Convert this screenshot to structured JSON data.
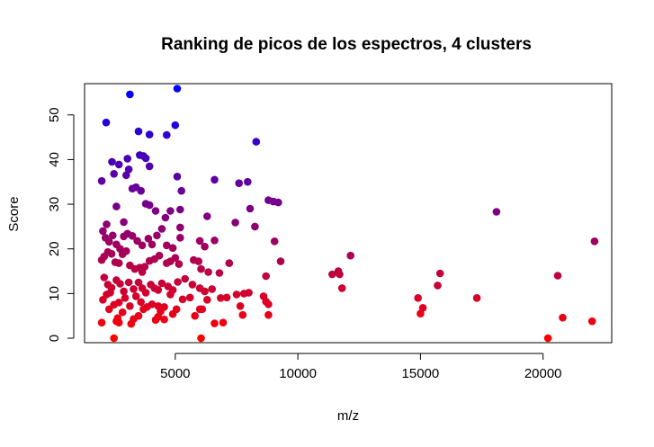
{
  "chart_data": {
    "type": "scatter",
    "title": "Ranking de picos de los espectros, 4 clusters",
    "xlabel": "m/z",
    "ylabel": "Score",
    "xlim": [
      1300,
      22800
    ],
    "ylim": [
      -1,
      57
    ],
    "x_ticks": [
      5000,
      10000,
      15000,
      20000
    ],
    "y_ticks": [
      0,
      10,
      20,
      30,
      40,
      50
    ],
    "x_tick_labels": [
      "5000",
      "10000",
      "15000",
      "20000"
    ],
    "y_tick_labels": [
      "0",
      "10",
      "20",
      "30",
      "40",
      "50"
    ],
    "grid": false,
    "legend": "none",
    "color_scale": {
      "low": "#ff0000",
      "high": "#0000ff",
      "encoding": "point color follows Score, red (low) to blue (high)"
    },
    "points": [
      [
        2000,
        35.2
      ],
      [
        2180,
        48.3
      ],
      [
        2420,
        39.5
      ],
      [
        2500,
        36.8
      ],
      [
        2700,
        38.9
      ],
      [
        3050,
        40.2
      ],
      [
        3150,
        54.6
      ],
      [
        3500,
        46.3
      ],
      [
        3550,
        41.0
      ],
      [
        3700,
        40.8
      ],
      [
        3800,
        40.3
      ],
      [
        3950,
        38.5
      ],
      [
        3950,
        45.6
      ],
      [
        4650,
        45.5
      ],
      [
        5000,
        47.7
      ],
      [
        5080,
        55.9
      ],
      [
        5080,
        36.2
      ],
      [
        5250,
        33.0
      ],
      [
        6600,
        35.5
      ],
      [
        7600,
        34.7
      ],
      [
        7950,
        35.0
      ],
      [
        8300,
        44.0
      ],
      [
        2200,
        25.5
      ],
      [
        2600,
        29.5
      ],
      [
        2900,
        26.0
      ],
      [
        3000,
        36.5
      ],
      [
        3100,
        37.8
      ],
      [
        3250,
        33.5
      ],
      [
        3400,
        33.8
      ],
      [
        3600,
        33.0
      ],
      [
        3800,
        30.1
      ],
      [
        3950,
        29.8
      ],
      [
        4200,
        28.5
      ],
      [
        4600,
        27.0
      ],
      [
        4800,
        28.5
      ],
      [
        5200,
        28.8
      ],
      [
        6300,
        27.3
      ],
      [
        7450,
        25.9
      ],
      [
        8050,
        29.0
      ],
      [
        8800,
        30.9
      ],
      [
        9000,
        30.6
      ],
      [
        9200,
        30.4
      ],
      [
        8250,
        25.0
      ],
      [
        18100,
        28.3
      ],
      [
        2050,
        24.0
      ],
      [
        2150,
        22.5
      ],
      [
        2300,
        21.6
      ],
      [
        2450,
        23.0
      ],
      [
        2600,
        21.0
      ],
      [
        2750,
        20.0
      ],
      [
        2900,
        22.8
      ],
      [
        3050,
        23.4
      ],
      [
        3250,
        22.9
      ],
      [
        3450,
        21.8
      ],
      [
        3650,
        20.8
      ],
      [
        3900,
        22.3
      ],
      [
        4050,
        21.0
      ],
      [
        4250,
        23.0
      ],
      [
        4450,
        24.5
      ],
      [
        4650,
        20.8
      ],
      [
        4900,
        20.2
      ],
      [
        5200,
        22.5
      ],
      [
        5200,
        24.8
      ],
      [
        6000,
        21.8
      ],
      [
        6200,
        20.5
      ],
      [
        6600,
        21.9
      ],
      [
        9050,
        21.7
      ],
      [
        22100,
        21.7
      ],
      [
        2000,
        17.5
      ],
      [
        2100,
        18.3
      ],
      [
        2250,
        19.3
      ],
      [
        2400,
        18.9
      ],
      [
        2550,
        17.0
      ],
      [
        2700,
        16.8
      ],
      [
        2850,
        18.8
      ],
      [
        3000,
        19.5
      ],
      [
        3150,
        16.3
      ],
      [
        3350,
        15.5
      ],
      [
        3550,
        15.8
      ],
      [
        3650,
        14.8
      ],
      [
        3750,
        16.0
      ],
      [
        3950,
        17.3
      ],
      [
        4150,
        17.7
      ],
      [
        4350,
        18.5
      ],
      [
        4650,
        16.8
      ],
      [
        4800,
        17.2
      ],
      [
        5000,
        18.0
      ],
      [
        5150,
        16.6
      ],
      [
        5750,
        17.5
      ],
      [
        5950,
        17.2
      ],
      [
        6050,
        15.5
      ],
      [
        6350,
        14.8
      ],
      [
        6800,
        14.6
      ],
      [
        7200,
        16.8
      ],
      [
        8700,
        13.9
      ],
      [
        9300,
        17.2
      ],
      [
        11400,
        14.3
      ],
      [
        11700,
        14.3
      ],
      [
        11650,
        15.0
      ],
      [
        12150,
        18.5
      ],
      [
        15800,
        14.5
      ],
      [
        20600,
        14.0
      ],
      [
        2100,
        13.6
      ],
      [
        2250,
        12.0
      ],
      [
        2400,
        11.3
      ],
      [
        2600,
        13.0
      ],
      [
        2750,
        12.2
      ],
      [
        2900,
        10.5
      ],
      [
        3100,
        12.5
      ],
      [
        3300,
        11.0
      ],
      [
        3500,
        12.5
      ],
      [
        3650,
        11.2
      ],
      [
        3800,
        10.2
      ],
      [
        4000,
        12.0
      ],
      [
        4150,
        11.2
      ],
      [
        4300,
        10.8
      ],
      [
        4450,
        12.3
      ],
      [
        4700,
        11.6
      ],
      [
        4900,
        10.8
      ],
      [
        5100,
        12.6
      ],
      [
        5400,
        13.3
      ],
      [
        5700,
        12.0
      ],
      [
        6000,
        11.2
      ],
      [
        6200,
        10.5
      ],
      [
        6500,
        11.0
      ],
      [
        7500,
        9.8
      ],
      [
        7800,
        10.0
      ],
      [
        8000,
        10.2
      ],
      [
        8600,
        9.4
      ],
      [
        8700,
        8.2
      ],
      [
        11800,
        11.2
      ],
      [
        15700,
        11.8
      ],
      [
        2050,
        8.6
      ],
      [
        2200,
        9.8
      ],
      [
        2350,
        10.2
      ],
      [
        2500,
        7.5
      ],
      [
        2700,
        8.0
      ],
      [
        2950,
        9.0
      ],
      [
        3150,
        7.2
      ],
      [
        3400,
        9.4
      ],
      [
        3600,
        8.1
      ],
      [
        3850,
        7.0
      ],
      [
        4050,
        7.6
      ],
      [
        4300,
        7.2
      ],
      [
        4400,
        6.0
      ],
      [
        4550,
        7.0
      ],
      [
        4800,
        9.8
      ],
      [
        5050,
        6.5
      ],
      [
        5300,
        8.7
      ],
      [
        5600,
        9.1
      ],
      [
        6000,
        6.5
      ],
      [
        6300,
        8.6
      ],
      [
        6850,
        9.0
      ],
      [
        7100,
        9.1
      ],
      [
        7650,
        7.2
      ],
      [
        8800,
        7.6
      ],
      [
        14900,
        9.0
      ],
      [
        17300,
        9.0
      ],
      [
        2000,
        3.5
      ],
      [
        2300,
        6.5
      ],
      [
        2650,
        4.5
      ],
      [
        2850,
        5.8
      ],
      [
        3200,
        3.2
      ],
      [
        3500,
        5.0
      ],
      [
        3700,
        6.5
      ],
      [
        4200,
        4.1
      ],
      [
        4550,
        4.2
      ],
      [
        4900,
        5.4
      ],
      [
        5800,
        5.0
      ],
      [
        6100,
        6.5
      ],
      [
        6950,
        3.5
      ],
      [
        7750,
        5.2
      ],
      [
        8800,
        5.2
      ],
      [
        15000,
        5.5
      ],
      [
        15100,
        6.8
      ],
      [
        20800,
        4.6
      ],
      [
        22000,
        3.8
      ],
      [
        2500,
        0.0
      ],
      [
        2600,
        3.8
      ],
      [
        2700,
        3.5
      ],
      [
        3300,
        4.3
      ],
      [
        4300,
        4.8
      ],
      [
        6050,
        0.0
      ],
      [
        6600,
        3.3
      ],
      [
        20200,
        0.0
      ]
    ]
  }
}
